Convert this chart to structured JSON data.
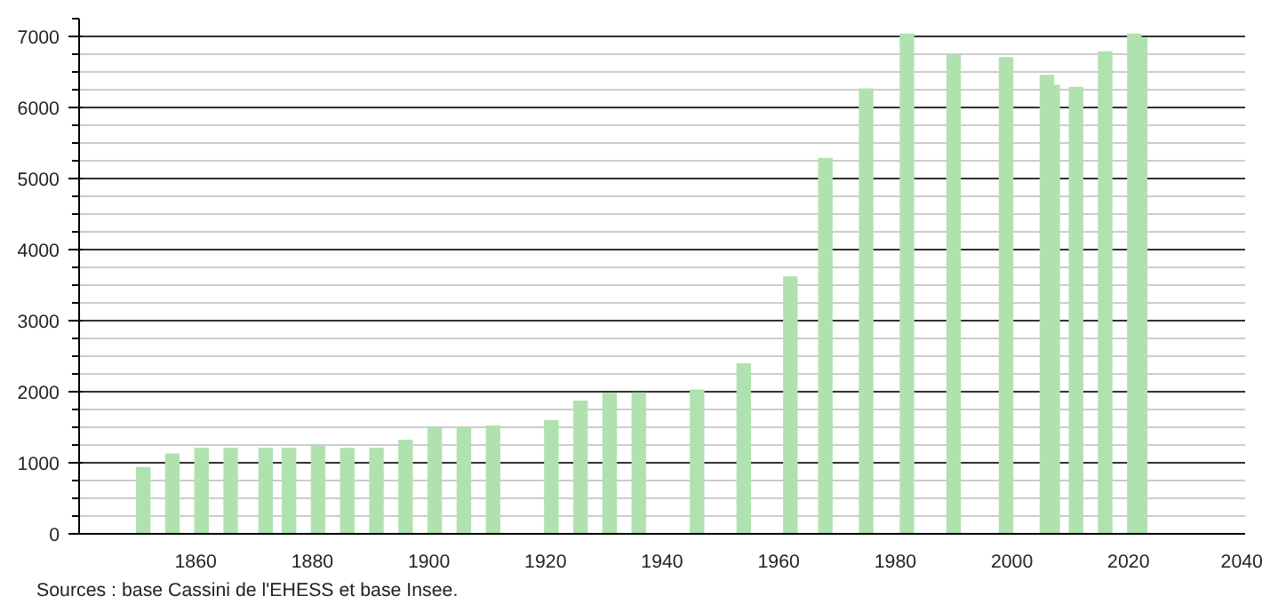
{
  "chart_data": {
    "type": "bar",
    "x": [
      1851,
      1856,
      1861,
      1866,
      1872,
      1876,
      1881,
      1886,
      1891,
      1896,
      1901,
      1906,
      1911,
      1921,
      1926,
      1931,
      1936,
      1946,
      1954,
      1962,
      1968,
      1975,
      1982,
      1990,
      1999,
      2006,
      2007,
      2011,
      2016,
      2021,
      2022
    ],
    "series": [
      {
        "color": "#b0e2b0",
        "values": [
          940,
          1130,
          1210,
          1210,
          1210,
          1210,
          1250,
          1210,
          1210,
          1325,
          1490,
          1490,
          1525,
          1600,
          1875,
          1985,
          1990,
          2030,
          2400,
          3625,
          5290,
          6270,
          7040,
          6740,
          6710,
          6460,
          6320,
          6290,
          6790,
          7040,
          6980
        ]
      }
    ],
    "xlim": [
      1840,
      2040
    ],
    "xticks": [
      1860,
      1880,
      1900,
      1920,
      1940,
      1960,
      1980,
      2000,
      2020,
      2040
    ],
    "ylim": [
      0,
      7250
    ],
    "yticks": [
      0,
      1000,
      2000,
      3000,
      4000,
      5000,
      6000,
      7000
    ],
    "grid": "y",
    "annotations": [
      "Sources : base Cassini de l'EHESS et base Insee."
    ]
  }
}
